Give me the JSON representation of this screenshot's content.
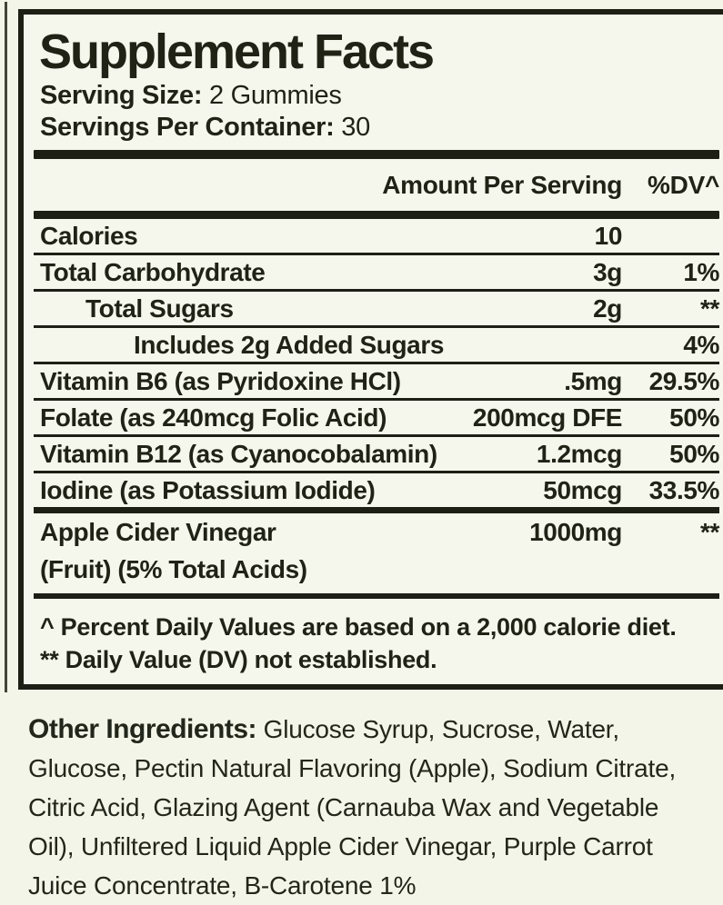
{
  "colors": {
    "background": "#f4f5e9",
    "ink": "#1d1f14"
  },
  "panel": {
    "title": "Supplement Facts",
    "serving_size_label": "Serving Size:",
    "serving_size_value": "2 Gummies",
    "servings_per_container_label": "Servings Per Container:",
    "servings_per_container_value": "30",
    "header": {
      "amount_label": "Amount Per Serving",
      "dv_label": "%DV^"
    },
    "rows": [
      {
        "name": "Calories",
        "amount": "10",
        "dv": "",
        "indent": 0
      },
      {
        "name": "Total Carbohydrate",
        "amount": "3g",
        "dv": "1%",
        "indent": 0
      },
      {
        "name": "Total Sugars",
        "amount": "2g",
        "dv": "**",
        "indent": 1
      },
      {
        "name": "Includes 2g Added Sugars",
        "amount": "",
        "dv": "4%",
        "indent": 2
      },
      {
        "name": "Vitamin B6 (as Pyridoxine HCl)",
        "amount": ".5mg",
        "dv": "29.5%",
        "indent": 0
      },
      {
        "name": "Folate (as 240mcg Folic Acid)",
        "amount": "200mcg DFE",
        "dv": "50%",
        "indent": 0
      },
      {
        "name": "Vitamin B12 (as Cyanocobalamin)",
        "amount": "1.2mcg",
        "dv": "50%",
        "indent": 0
      },
      {
        "name": "Iodine (as Potassium Iodide)",
        "amount": "50mcg",
        "dv": "33.5%",
        "indent": 0,
        "thick_bottom": true
      },
      {
        "name": "Apple Cider Vinegar",
        "name_line2": "(Fruit) (5% Total Acids)",
        "amount": "1000mg",
        "dv": "**",
        "indent": 0,
        "acv": true
      }
    ],
    "footnotes": [
      "^ Percent Daily Values are based on a 2,000 calorie diet.",
      "** Daily Value (DV) not established."
    ]
  },
  "other_ingredients": {
    "label": "Other Ingredients:",
    "text": "Glucose Syrup, Sucrose, Water, Glucose, Pectin Natural Flavoring (Apple), Sodium Citrate, Citric Acid, Glazing Agent (Carnauba Wax and Vegetable Oil), Unfiltered Liquid Apple Cider Vinegar, Purple Carrot Juice Concentrate, B-Carotene 1%"
  }
}
